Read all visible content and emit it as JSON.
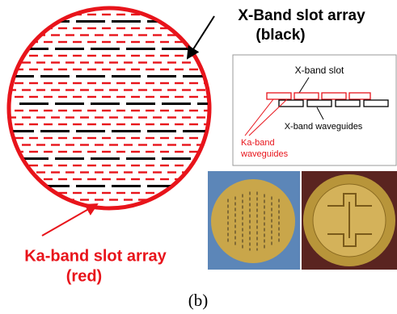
{
  "figure": {
    "main": {
      "title": "X-Band slot array",
      "subtitle": "(black)",
      "ka_label": "Ka-band slot array",
      "ka_sublabel": "(red)"
    },
    "inset": {
      "x_slot": "X-band slot",
      "x_waveguides": "X-band waveguides",
      "ka_waveguides_1": "Ka-band",
      "ka_waveguides_2": "waveguides"
    },
    "caption": "(b)"
  }
}
